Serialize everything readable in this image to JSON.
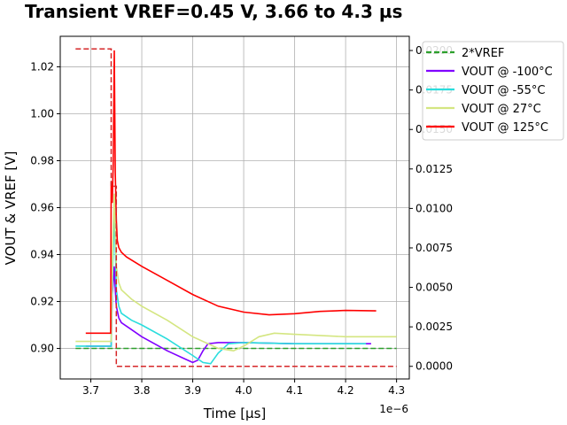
{
  "chart_data": {
    "type": "line",
    "title": "Transient VREF=0.45 V, 3.66 to 4.3 µs",
    "xlabel": "Time [µs]",
    "ylabel": "VOUT & VREF [V]",
    "x_offset_label": "1e−6",
    "xlim": [
      3.64,
      4.325
    ],
    "ylim": [
      0.887,
      1.033
    ],
    "y2lim": [
      -0.0008,
      0.0209
    ],
    "x_ticks": [
      3.7,
      3.8,
      3.9,
      4.0,
      4.1,
      4.2,
      4.3
    ],
    "x_tick_labels": [
      "3.7",
      "3.8",
      "3.9",
      "4.0",
      "4.1",
      "4.2",
      "4.3"
    ],
    "y_ticks": [
      0.9,
      0.92,
      0.94,
      0.96,
      0.98,
      1.0,
      1.02
    ],
    "y_tick_labels": [
      "0.90",
      "0.92",
      "0.94",
      "0.96",
      "0.98",
      "1.00",
      "1.02"
    ],
    "y2_ticks": [
      0.0,
      0.0025,
      0.005,
      0.0075,
      0.01,
      0.0125,
      0.015,
      0.0175,
      0.02
    ],
    "y2_tick_labels": [
      "0.0000",
      "0.0025",
      "0.0050",
      "0.0075",
      "0.0100",
      "0.0125",
      "0.0150",
      "0.0175",
      "0.0200"
    ],
    "grid": true,
    "legend_position": "top-right",
    "series": [
      {
        "name": "2*VREF",
        "color": "#2ca02c",
        "dash": true,
        "axis": "left",
        "x": [
          3.67,
          4.3
        ],
        "y": [
          0.9,
          0.9
        ]
      },
      {
        "name": "VOUT @ -100°C",
        "color": "#8000ff",
        "axis": "left",
        "x": [
          3.69,
          3.74,
          3.742,
          3.744,
          3.746,
          3.748,
          3.75,
          3.755,
          3.76,
          3.78,
          3.8,
          3.85,
          3.88,
          3.9,
          3.91,
          3.92,
          3.93,
          3.95,
          4.0,
          4.1,
          4.25
        ],
        "y": [
          0.901,
          0.901,
          0.923,
          0.928,
          0.935,
          0.925,
          0.918,
          0.913,
          0.911,
          0.908,
          0.905,
          0.899,
          0.896,
          0.894,
          0.895,
          0.899,
          0.902,
          0.9025,
          0.9025,
          0.902,
          0.902
        ]
      },
      {
        "name": "VOUT @ -55°C",
        "color": "#2adddd",
        "axis": "left",
        "x": [
          3.67,
          3.74,
          3.743,
          3.746,
          3.748,
          3.75,
          3.755,
          3.76,
          3.78,
          3.8,
          3.85,
          3.9,
          3.92,
          3.935,
          3.95,
          3.97,
          4.0,
          4.1,
          4.24
        ],
        "y": [
          0.901,
          0.901,
          0.935,
          0.958,
          0.945,
          0.925,
          0.918,
          0.915,
          0.912,
          0.91,
          0.904,
          0.897,
          0.894,
          0.8935,
          0.898,
          0.902,
          0.9025,
          0.902,
          0.902
        ]
      },
      {
        "name": "VOUT @ 27°C",
        "color": "#d4e681",
        "axis": "left",
        "x": [
          3.67,
          3.74,
          3.743,
          3.746,
          3.748,
          3.75,
          3.755,
          3.76,
          3.78,
          3.8,
          3.85,
          3.9,
          3.95,
          3.98,
          4.0,
          4.03,
          4.06,
          4.1,
          4.2,
          4.3
        ],
        "y": [
          0.903,
          0.903,
          0.945,
          0.966,
          0.95,
          0.935,
          0.928,
          0.925,
          0.921,
          0.918,
          0.912,
          0.905,
          0.9,
          0.899,
          0.901,
          0.905,
          0.9065,
          0.906,
          0.905,
          0.905
        ]
      },
      {
        "name": "VOUT @ 125°C",
        "color": "#ff0000",
        "axis": "left",
        "x": [
          3.69,
          3.739,
          3.74,
          3.742,
          3.744,
          3.746,
          3.748,
          3.75,
          3.752,
          3.755,
          3.76,
          3.77,
          3.8,
          3.85,
          3.9,
          3.95,
          4.0,
          4.05,
          4.1,
          4.15,
          4.2,
          4.26
        ],
        "y": [
          0.9065,
          0.9065,
          0.971,
          0.962,
          0.978,
          1.027,
          0.975,
          0.955,
          0.946,
          0.943,
          0.941,
          0.939,
          0.935,
          0.929,
          0.923,
          0.918,
          0.9155,
          0.9143,
          0.9148,
          0.9158,
          0.9162,
          0.916
        ]
      },
      {
        "name": "",
        "color": "#d62728",
        "dash": true,
        "axis": "right",
        "x": [
          3.67,
          3.74,
          3.74,
          3.75,
          3.75,
          4.3
        ],
        "y": [
          0.0201,
          0.0201,
          0.0114,
          0.0114,
          0.0,
          0.0
        ]
      }
    ]
  }
}
